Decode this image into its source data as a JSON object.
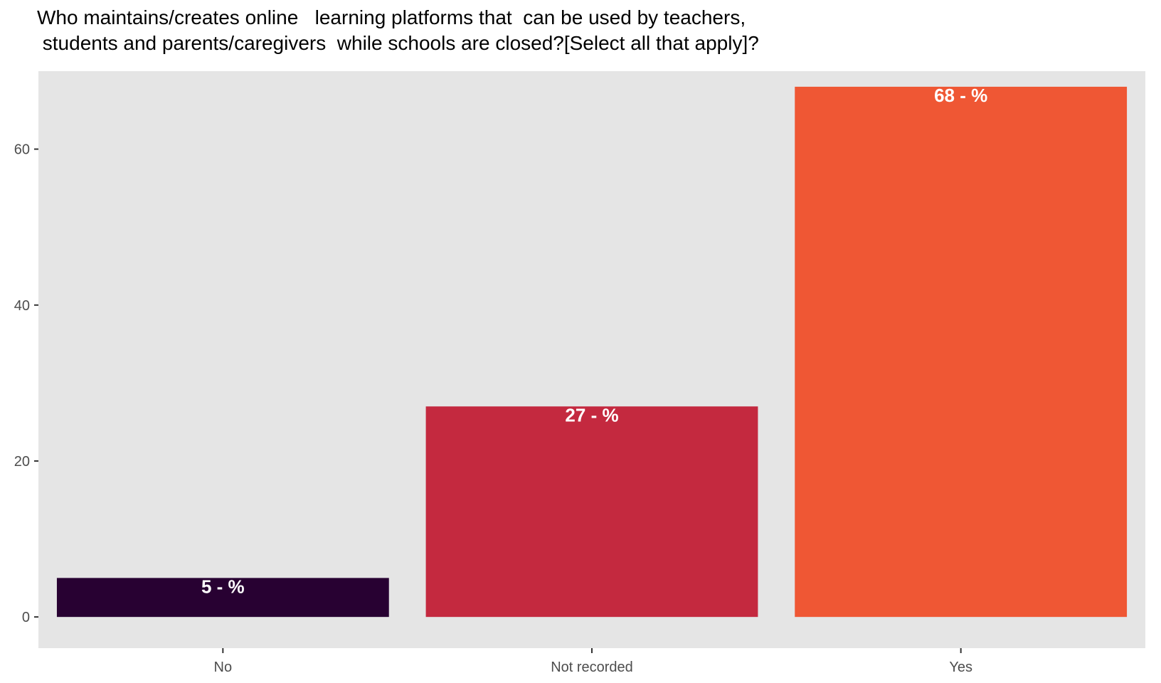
{
  "chart_data": {
    "type": "bar",
    "title_lines": [
      "Who maintains/creates online   learning platforms that  can be used by teachers,",
      " students and parents/caregivers  while schools are closed?[Select all that apply]?"
    ],
    "xlabel": "",
    "ylabel": "",
    "categories": [
      "No",
      "Not recorded",
      "Yes"
    ],
    "values": [
      5,
      27,
      68
    ],
    "data_labels": [
      "5 - %",
      "27 - %",
      "68 - %"
    ],
    "colors": [
      "#280132",
      "#C4293F",
      "#EF5734"
    ],
    "ylim": [
      -4,
      70
    ],
    "yticks": [
      0,
      20,
      40,
      60
    ],
    "ytick_labels": [
      "0",
      "20",
      "40",
      "60"
    ],
    "panel_background": "#E5E5E5",
    "grid": false,
    "legend": "none"
  }
}
